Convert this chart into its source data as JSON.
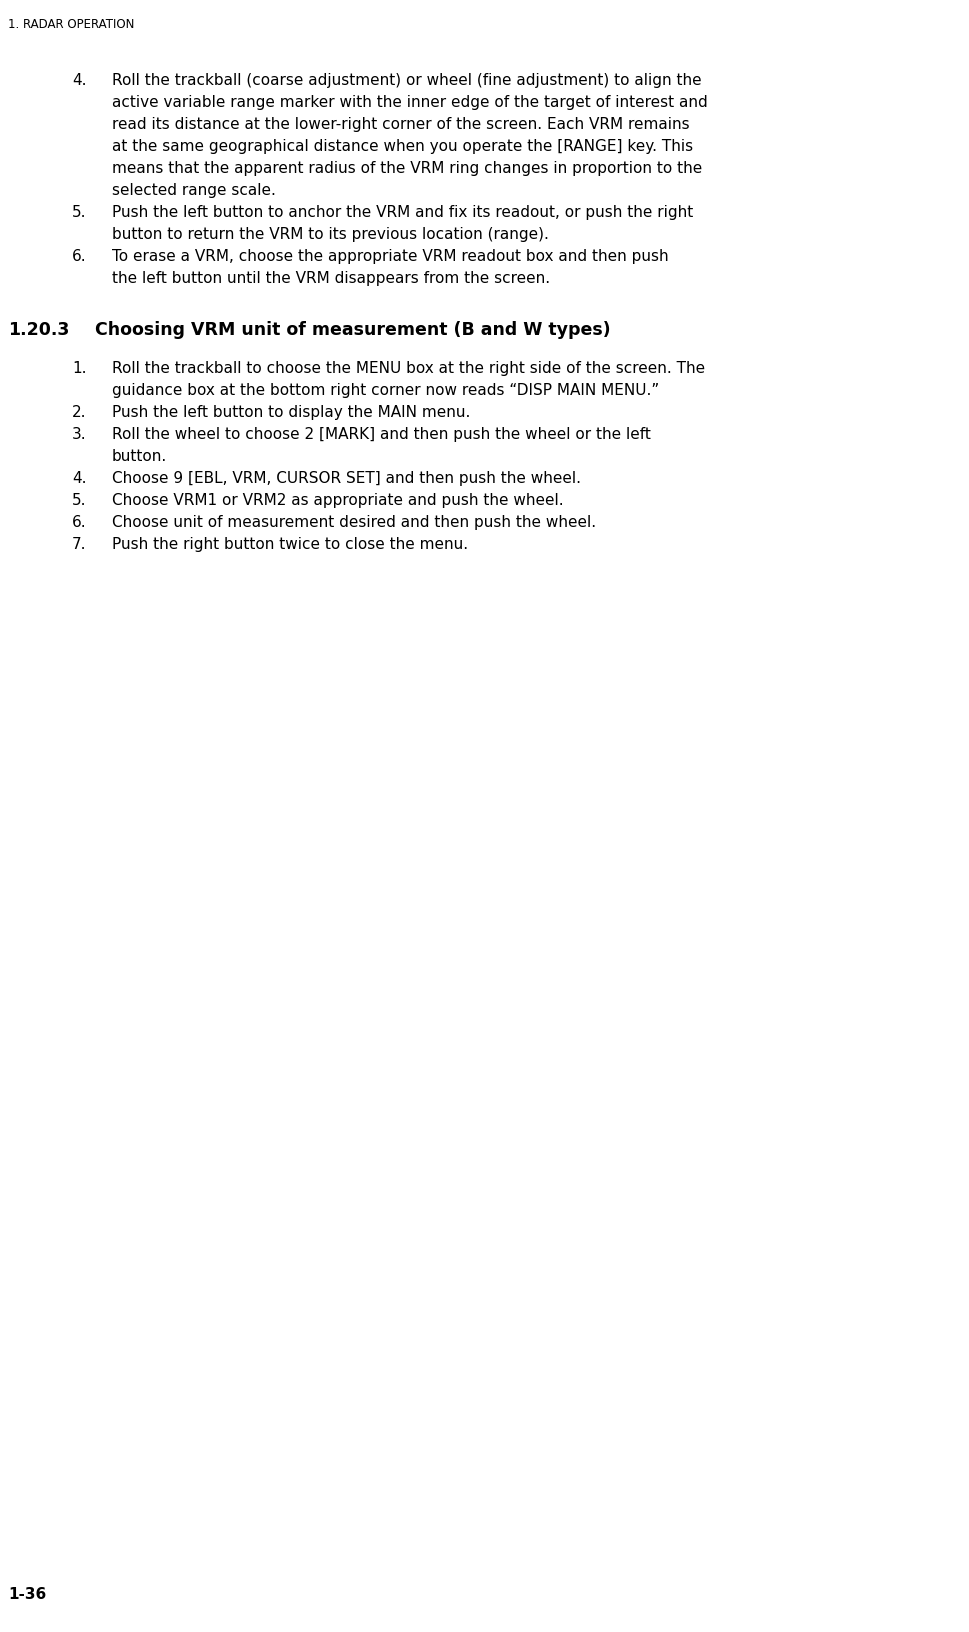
{
  "background_color": "#ffffff",
  "header_text": "1. RADAR OPERATION",
  "footer_text": "1-36",
  "section_number": "1.20.3",
  "section_title": "Choosing VRM unit of measurement (B and W types)",
  "header_font_size": 8.5,
  "section_num_font_size": 12.5,
  "section_title_font_size": 12.5,
  "body_font_size": 11.0,
  "footer_font_size": 11.0,
  "text_color": "#000000",
  "items_part1": [
    {
      "number": "4.",
      "lines": [
        "Roll the trackball (coarse adjustment) or wheel (fine adjustment) to align the",
        "active variable range marker with the inner edge of the target of interest and",
        "read its distance at the lower-right corner of the screen. Each VRM remains",
        "at the same geographical distance when you operate the [RANGE] key. This",
        "means that the apparent radius of the VRM ring changes in proportion to the",
        "selected range scale."
      ]
    },
    {
      "number": "5.",
      "lines": [
        "Push the left button to anchor the VRM and fix its readout, or push the right",
        "button to return the VRM to its previous location (range)."
      ]
    },
    {
      "number": "6.",
      "lines": [
        "To erase a VRM, choose the appropriate VRM readout box and then push",
        "the left button until the VRM disappears from the screen."
      ]
    }
  ],
  "items_part2": [
    {
      "number": "1.",
      "lines": [
        "Roll the trackball to choose the MENU box at the right side of the screen. The",
        "guidance box at the bottom right corner now reads “DISP MAIN MENU.”"
      ]
    },
    {
      "number": "2.",
      "lines": [
        "Push the left button to display the MAIN menu."
      ]
    },
    {
      "number": "3.",
      "lines": [
        "Roll the wheel to choose 2 [MARK] and then push the wheel or the left",
        "button."
      ]
    },
    {
      "number": "4.",
      "lines": [
        "Choose 9 [EBL, VRM, CURSOR SET] and then push the wheel."
      ]
    },
    {
      "number": "5.",
      "lines": [
        "Choose VRM1 or VRM2 as appropriate and push the wheel."
      ]
    },
    {
      "number": "6.",
      "lines": [
        "Choose unit of measurement desired and then push the wheel."
      ]
    },
    {
      "number": "7.",
      "lines": [
        "Push the right button twice to close the menu."
      ]
    }
  ]
}
